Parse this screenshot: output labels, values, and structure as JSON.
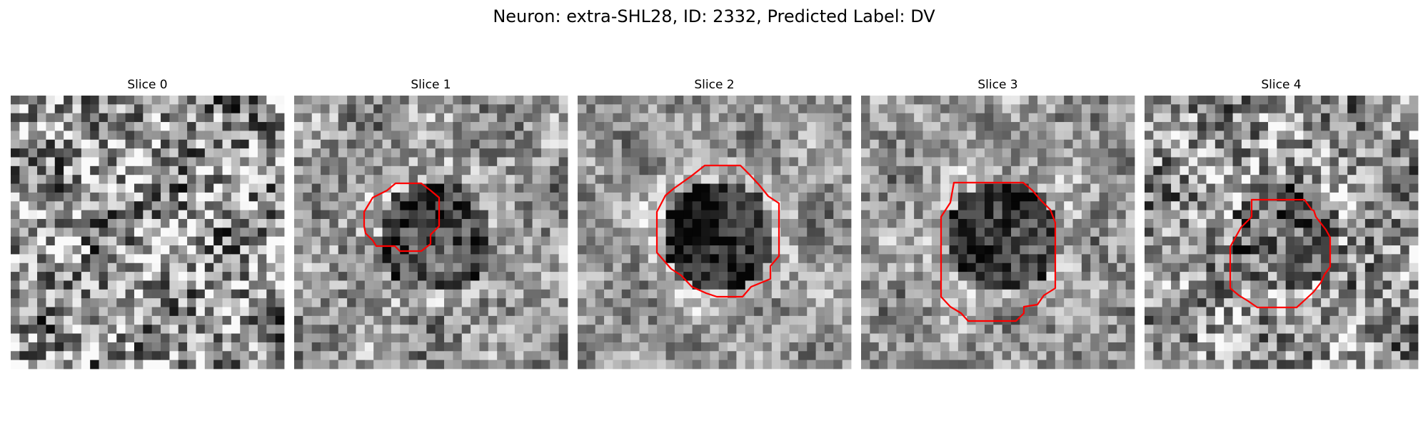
{
  "figure": {
    "title": "Neuron: extra-SHL28, ID: 2332, Predicted Label: DV"
  },
  "colors": {
    "contour": "#ff0000",
    "background": "#ffffff",
    "colormap": "grayscale"
  },
  "panels": [
    {
      "title": "Slice 0",
      "has_contour": false,
      "seed": 11,
      "blob": 0.0,
      "noise": 0.95
    },
    {
      "title": "Slice 1",
      "has_contour": true,
      "seed": 23,
      "blob": 0.55,
      "noise": 0.55
    },
    {
      "title": "Slice 2",
      "has_contour": true,
      "seed": 37,
      "blob": 0.75,
      "noise": 0.45
    },
    {
      "title": "Slice 3",
      "has_contour": true,
      "seed": 41,
      "blob": 0.65,
      "noise": 0.5
    },
    {
      "title": "Slice 4",
      "has_contour": true,
      "seed": 53,
      "blob": 0.35,
      "noise": 0.8
    }
  ]
}
